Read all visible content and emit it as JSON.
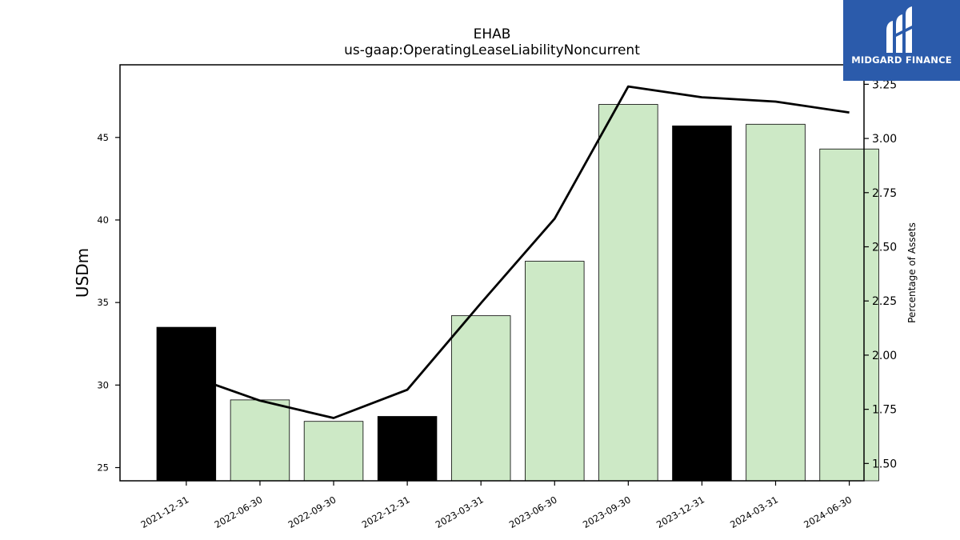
{
  "chart_data": {
    "type": "bar+line",
    "title": "EHAB",
    "subtitle": "us-gaap:OperatingLeaseLiabilityNoncurrent",
    "ylabel": "USDm",
    "y2label": "Percentage of Assets",
    "categories": [
      "2021-12-31",
      "2022-06-30",
      "2022-09-30",
      "2022-12-31",
      "2023-03-31",
      "2023-06-30",
      "2023-09-30",
      "2023-12-31",
      "2024-03-31",
      "2024-06-30"
    ],
    "bar_series": {
      "values": [
        33.5,
        29.1,
        27.8,
        28.1,
        34.2,
        37.5,
        47.0,
        45.7,
        45.8,
        44.3
      ],
      "colors": [
        "#000000",
        "#cde9c6",
        "#cde9c6",
        "#000000",
        "#cde9c6",
        "#cde9c6",
        "#cde9c6",
        "#000000",
        "#cde9c6",
        "#cde9c6"
      ]
    },
    "line_series": {
      "values": [
        1.91,
        1.79,
        1.71,
        1.84,
        2.24,
        2.63,
        3.24,
        3.19,
        3.17,
        3.12
      ],
      "color": "#000000"
    },
    "ylim": [
      24.2,
      49.4
    ],
    "y2lim": [
      1.42,
      3.34
    ],
    "yticks": [
      25,
      30,
      35,
      40,
      45
    ],
    "y2ticks": [
      "1.50",
      "1.75",
      "2.00",
      "2.25",
      "2.50",
      "2.75",
      "3.00",
      "3.25"
    ],
    "grid": false,
    "legend": "none"
  },
  "logo": {
    "text": "MIDGARD FINANCE",
    "background": "#2b5bab",
    "icon": "midgard-logo-icon"
  }
}
